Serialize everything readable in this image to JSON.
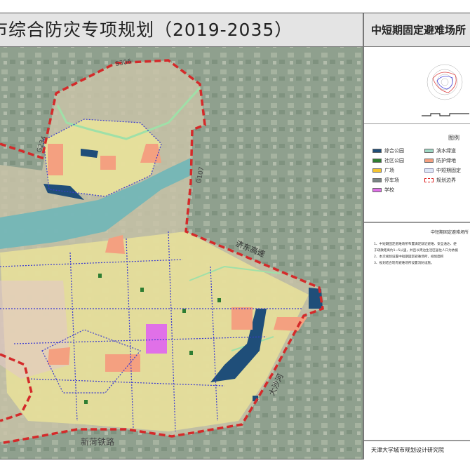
{
  "header": {
    "title": "市综合防灾专项规划（2019-2035）"
  },
  "panel": {
    "title": "中短期固定避难场所",
    "legend_title": "图例",
    "legend": [
      {
        "label": "综合公园",
        "color": "#1f4e79"
      },
      {
        "label": "社区公园",
        "color": "#2e7d32"
      },
      {
        "label": "广场",
        "color": "#f4c430"
      },
      {
        "label": "停车场",
        "color": "#7a8585"
      },
      {
        "label": "学校",
        "color": "#e070e8"
      },
      {
        "label": "滨水绿道",
        "color": "#9fd8c4"
      },
      {
        "label": "防护绿地",
        "color": "#f4a080"
      },
      {
        "label": "中短期固定",
        "color": "#dde6f5"
      },
      {
        "label": "规划边界",
        "color": "#d22"
      }
    ],
    "notes_title": "中短期固定避难场所",
    "notes": [
      "1、中短期固定避难场所布置满足就近避难、安全通达、便",
      "于疏散距离约1~5公里，并且以周边生活区居住人口为依据",
      "2、本次规划设置中短期固定避难场所，规划面积",
      "3、规划结合现有避难场所设置消防设施。"
    ],
    "organization": "天津大学城市规划设计研究院"
  },
  "map": {
    "labels": {
      "s306": "S306",
      "g234": "G234",
      "g107": "G107",
      "expressway": "济东高速",
      "river": "大沙河",
      "railway": "新菏铁路"
    },
    "colors": {
      "boundary": "#d42a2a",
      "district": "#3a3ad0",
      "river": "#6fb6b8",
      "park": "#1f4e79",
      "protective": "#f4a080",
      "school": "#e070e8",
      "urban": "#e9e29a"
    }
  }
}
